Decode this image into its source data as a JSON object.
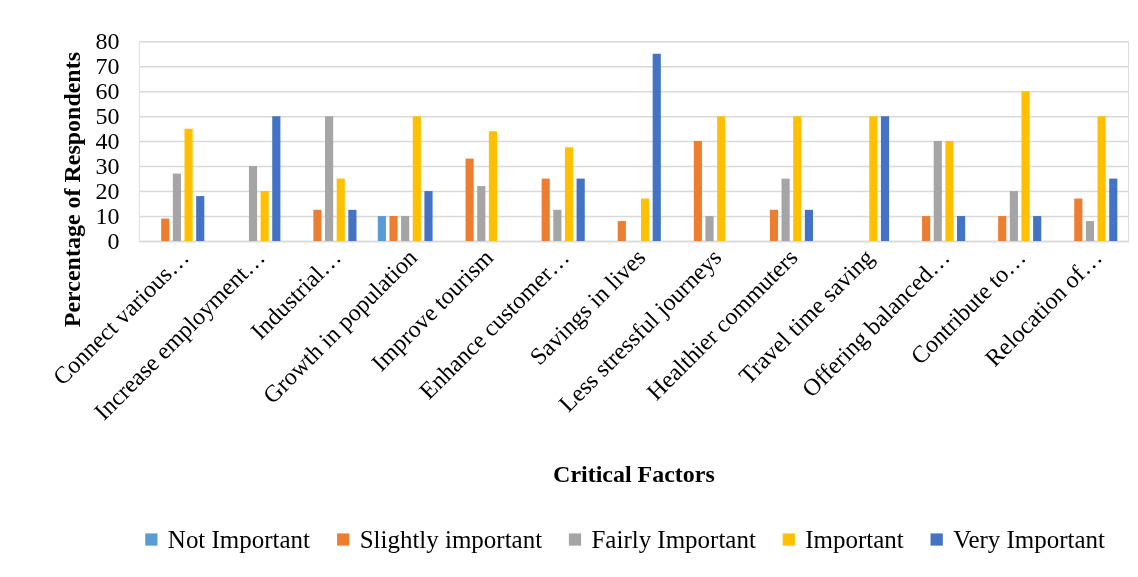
{
  "chart_data": {
    "type": "bar",
    "xlabel": "Critical Factors",
    "ylabel": "Percentage of Respondents",
    "categories": [
      "Connect various…",
      "Increase employment…",
      "Industrial…",
      "Growth in population",
      "Improve tourism",
      "Enhance customer…",
      "Savings in lives",
      "Less stressful journeys",
      "Healthier commuters",
      "Travel time saving",
      "Offering balanced…",
      "Contribute to…",
      "Relocation of…"
    ],
    "series": [
      {
        "name": "Not Important",
        "color": "#5b9bd5",
        "values": [
          null,
          null,
          null,
          10,
          null,
          null,
          null,
          null,
          null,
          null,
          null,
          null,
          null
        ]
      },
      {
        "name": "Slightly important",
        "color": "#ed7d31",
        "values": [
          9,
          null,
          12.5,
          10,
          33,
          25,
          8,
          40,
          12.5,
          null,
          10,
          10,
          17
        ]
      },
      {
        "name": "Fairly Important",
        "color": "#a5a5a5",
        "values": [
          27,
          30,
          50,
          10,
          22,
          12.5,
          null,
          10,
          25,
          null,
          40,
          20,
          8
        ]
      },
      {
        "name": "Important",
        "color": "#ffc000",
        "values": [
          45,
          20,
          25,
          50,
          44,
          37.5,
          17,
          50,
          50,
          50,
          40,
          60,
          50
        ]
      },
      {
        "name": "Very Important",
        "color": "#4472c4",
        "values": [
          18,
          50,
          12.5,
          20,
          null,
          25,
          75,
          null,
          12.5,
          50,
          10,
          10,
          25
        ]
      }
    ],
    "ylim": [
      0,
      80
    ],
    "yticks": [
      0,
      10,
      20,
      30,
      40,
      50,
      60,
      70,
      80
    ],
    "grid": "y",
    "legend": "bottom"
  }
}
